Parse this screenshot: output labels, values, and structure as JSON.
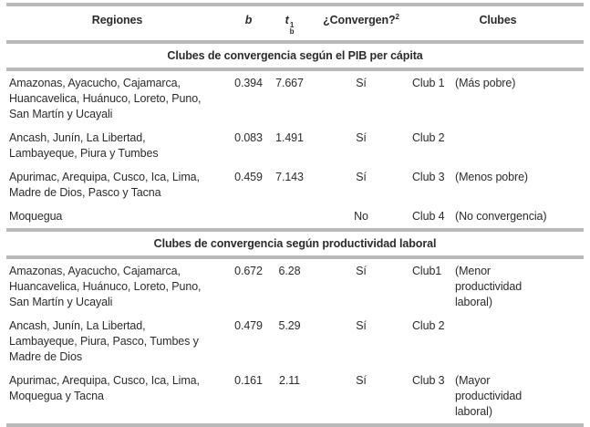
{
  "colors": {
    "rule_gray": "#b9b9b9",
    "text": "#2b2b2b",
    "background": "#ffffff"
  },
  "header": {
    "regiones": "Regiones",
    "b": "b",
    "t": "t",
    "t_sub": "b",
    "t_sup": "1",
    "convergen": "¿Convergen?",
    "convergen_sup": "2",
    "clubes": "Clubes"
  },
  "table": {
    "sections": [
      {
        "title": "Clubes de convergencia según el PIB per cápita",
        "rows": [
          {
            "regiones": "Amazonas, Ayacucho, Cajamarca,\nHuancavelica, Huánuco, Loreto, Puno,\nSan Martín y Ucayali",
            "b": "0.394",
            "t": "7.667",
            "convergen": "Sí",
            "club": "Club 1",
            "desc": "(Más pobre)"
          },
          {
            "regiones": "Ancash, Junín, La Libertad,\nLambayeque, Piura y Tumbes",
            "b": "0.083",
            "t": "1.491",
            "convergen": "Sí",
            "club": "Club 2",
            "desc": ""
          },
          {
            "regiones": "Apurimac, Arequipa, Cusco, Ica, Lima,\nMadre de Dios, Pasco y Tacna",
            "b": "0.459",
            "t": "7.143",
            "convergen": "Sí",
            "club": "Club 3",
            "desc": "(Menos pobre)"
          },
          {
            "regiones": "Moquegua",
            "b": "",
            "t": "",
            "convergen": "No",
            "club": "Club 4",
            "desc": "(No convergencia)"
          }
        ]
      },
      {
        "title": "Clubes de convergencia según productividad laboral",
        "rows": [
          {
            "regiones": "Amazonas, Ayacucho, Cajamarca,\nHuancavelica, Huánuco, Loreto, Puno,\nSan Martín y Ucayali",
            "b": "0.672",
            "t": "6.28",
            "convergen": "Sí",
            "club": "Club1",
            "desc": "(Menor\nproductividad\nlaboral)"
          },
          {
            "regiones": "Ancash, Junín, La Libertad,\nLambayeque, Piura, Pasco, Tumbes y\nMadre de Dios",
            "b": "0.479",
            "t": "5.29",
            "convergen": "Sí",
            "club": "Club 2",
            "desc": ""
          },
          {
            "regiones": "Apurimac, Arequipa, Cusco, Ica, Lima,\nMoquegua y Tacna",
            "b": "0.161",
            "t": "2.11",
            "convergen": "Sí",
            "club": "Club 3",
            "desc": "(Mayor\nproductividad\nlaboral)"
          }
        ]
      }
    ]
  }
}
